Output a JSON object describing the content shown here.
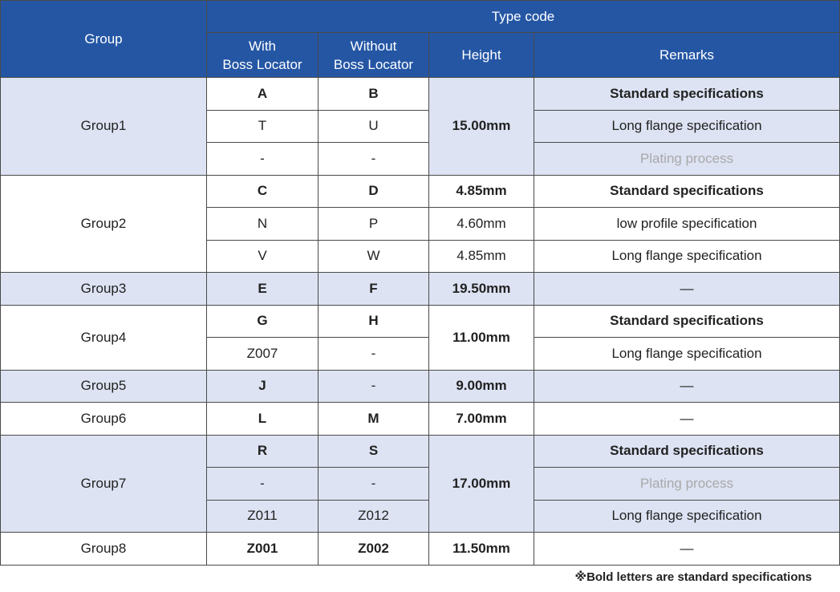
{
  "header": {
    "group": "Group",
    "type_code": "Type code",
    "with_boss": [
      "With",
      "Boss Locator"
    ],
    "without_boss": [
      "Without",
      "Boss Locator"
    ],
    "height": "Height",
    "remarks": "Remarks"
  },
  "groups": [
    {
      "name": "Group1",
      "height": "15.00mm",
      "rows": [
        {
          "with": "A",
          "without": "B",
          "remark": "Standard specifications"
        },
        {
          "with": "T",
          "without": "U",
          "remark": "Long flange specification"
        },
        {
          "with": "-",
          "without": "-",
          "remark": "Plating process"
        }
      ]
    },
    {
      "name": "Group2",
      "rows": [
        {
          "with": "C",
          "without": "D",
          "height": "4.85mm",
          "remark": "Standard specifications"
        },
        {
          "with": "N",
          "without": "P",
          "height": "4.60mm",
          "remark": "low profile specification"
        },
        {
          "with": "V",
          "without": "W",
          "height": "4.85mm",
          "remark": "Long flange specification"
        }
      ]
    },
    {
      "name": "Group3",
      "height": "19.50mm",
      "rows": [
        {
          "with": "E",
          "without": "F",
          "remark": "—"
        }
      ]
    },
    {
      "name": "Group4",
      "height": "11.00mm",
      "rows": [
        {
          "with": "G",
          "without": "H",
          "remark": "Standard specifications"
        },
        {
          "with": "Z007",
          "without": "-",
          "remark": "Long flange specification"
        }
      ]
    },
    {
      "name": "Group5",
      "height": "9.00mm",
      "rows": [
        {
          "with": "J",
          "without": "-",
          "remark": "—"
        }
      ]
    },
    {
      "name": "Group6",
      "height": "7.00mm",
      "rows": [
        {
          "with": "L",
          "without": "M",
          "remark": "—"
        }
      ]
    },
    {
      "name": "Group7",
      "height": "17.00mm",
      "rows": [
        {
          "with": "R",
          "without": "S",
          "remark": "Standard specifications"
        },
        {
          "with": "-",
          "without": "-",
          "remark": "Plating process"
        },
        {
          "with": "Z011",
          "without": "Z012",
          "remark": "Long flange specification"
        }
      ]
    },
    {
      "name": "Group8",
      "height": "11.50mm",
      "rows": [
        {
          "with": "Z001",
          "without": "Z002",
          "remark": "—"
        }
      ]
    }
  ],
  "footnote": "※Bold letters are standard specifications",
  "colors": {
    "header_bg": "#2456a4",
    "shade_bg": "#dde3f3",
    "muted_text": "#a9a9a9"
  }
}
